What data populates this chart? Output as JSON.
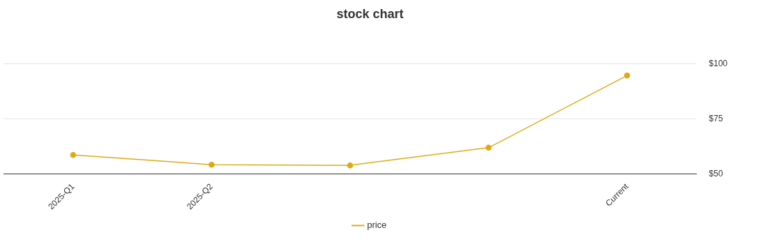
{
  "chart_data": {
    "type": "line",
    "title": "stock chart",
    "categories": [
      "2025-Q1",
      "2025-Q2",
      null,
      null,
      "Current"
    ],
    "series": [
      {
        "name": "price",
        "color": "#e0a912",
        "values": [
          58.7,
          54.3,
          54.0,
          62.0,
          94.7
        ]
      }
    ],
    "ylim": [
      50,
      100
    ],
    "yticks": [
      {
        "value": 50,
        "label": "$50"
      },
      {
        "value": 75,
        "label": "$75"
      },
      {
        "value": 100,
        "label": "$100"
      }
    ],
    "grid": "y",
    "legend": "bottom",
    "marker": "circle"
  }
}
